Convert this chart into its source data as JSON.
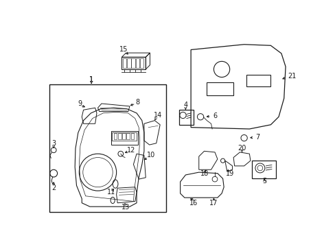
{
  "bg_color": "#ffffff",
  "lc": "#1a1a1a",
  "fig_w": 4.89,
  "fig_h": 3.6,
  "dpi": 100
}
